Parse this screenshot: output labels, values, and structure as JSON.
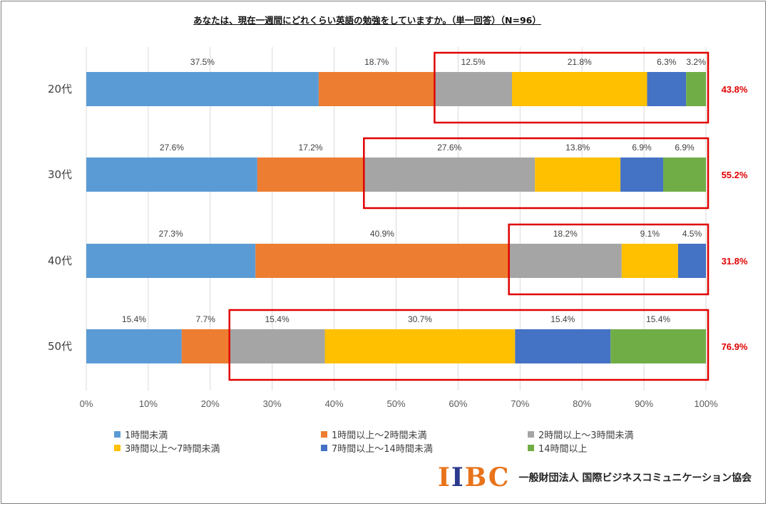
{
  "chart_data": {
    "type": "bar",
    "orientation": "horizontal",
    "stacked": "percent",
    "title": "あなたは、現在一週間にどれくらい英語の勉強をしていますか。（単一回答）（N=96）",
    "categories": [
      "20代",
      "30代",
      "40代",
      "50代"
    ],
    "series": [
      {
        "name": "1時間未満",
        "color": "#5b9bd5",
        "values": [
          37.5,
          27.6,
          27.3,
          15.4
        ]
      },
      {
        "name": "1時間以上～2時間未満",
        "color": "#ed7d31",
        "values": [
          18.7,
          17.2,
          40.9,
          7.7
        ]
      },
      {
        "name": "2時間以上～3時間未満",
        "color": "#a5a5a5",
        "values": [
          12.5,
          27.6,
          18.2,
          15.4
        ]
      },
      {
        "name": "3時間以上～7時間未満",
        "color": "#ffc000",
        "values": [
          21.8,
          13.8,
          9.1,
          30.7
        ]
      },
      {
        "name": "7時間以上～14時間未満",
        "color": "#4472c4",
        "values": [
          6.3,
          6.9,
          4.5,
          15.4
        ]
      },
      {
        "name": "14時間以上",
        "color": "#70ad47",
        "values": [
          3.2,
          6.9,
          null,
          15.4
        ]
      }
    ],
    "data_labels": [
      [
        "37.5%",
        "18.7%",
        "12.5%",
        "21.8%",
        "6.3%",
        "3.2%"
      ],
      [
        "27.6%",
        "17.2%",
        "27.6%",
        "13.8%",
        "6.9%",
        "6.9%"
      ],
      [
        "27.3%",
        "40.9%",
        "18.2%",
        "9.1%",
        "4.5%",
        ""
      ],
      [
        "15.4%",
        "7.7%",
        "15.4%",
        "30.7%",
        "15.4%",
        "15.4%"
      ]
    ],
    "highlight_totals": [
      "43.8%",
      "55.2%",
      "31.8%",
      "76.9%"
    ],
    "highlight_color": "#e00000",
    "xlim": [
      0,
      100
    ],
    "xticks": [
      "0%",
      "10%",
      "20%",
      "30%",
      "40%",
      "50%",
      "60%",
      "70%",
      "80%",
      "90%",
      "100%"
    ],
    "grid": true,
    "legend_position": "bottom"
  },
  "brand": {
    "logo_letters": [
      "I",
      "I",
      "B",
      "C"
    ],
    "logo_colors": [
      "#e8731a",
      "#2b3a8c",
      "#e8731a",
      "#e8731a"
    ],
    "organization": "一般財団法人 国際ビジネスコミュニケーション協会"
  }
}
